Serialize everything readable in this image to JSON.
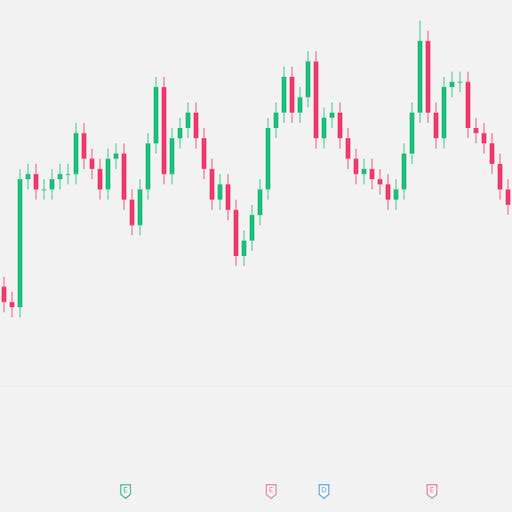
{
  "chart_data": {
    "type": "candlestick",
    "up_color": "#1fbf7a",
    "down_color": "#f23c6e",
    "ylim": [
      0,
      100
    ],
    "open": [
      44,
      41,
      40,
      65,
      66,
      63,
      63,
      65,
      66,
      66,
      74,
      69,
      67,
      63,
      69,
      70,
      61,
      56,
      63,
      72,
      83,
      66,
      73,
      75,
      78,
      73,
      67,
      61,
      64,
      59,
      50,
      53,
      58,
      63,
      75,
      78,
      85,
      78,
      81,
      88,
      73,
      77,
      78,
      73,
      69,
      66,
      67,
      65,
      64,
      61,
      63,
      70,
      78,
      92,
      78,
      73,
      83,
      84,
      84,
      75,
      74,
      72,
      68,
      63
    ],
    "high": [
      46,
      43,
      67,
      68,
      68,
      65,
      67,
      68,
      68,
      76,
      76,
      71,
      69,
      71,
      72,
      72,
      63,
      65,
      74,
      85,
      85,
      75,
      77,
      80,
      80,
      75,
      69,
      66,
      66,
      61,
      55,
      60,
      65,
      77,
      80,
      87,
      87,
      83,
      90,
      90,
      79,
      80,
      80,
      75,
      71,
      69,
      69,
      67,
      66,
      65,
      72,
      80,
      96,
      94,
      80,
      85,
      86,
      86,
      86,
      77,
      76,
      74,
      70,
      65
    ],
    "low": [
      39,
      38,
      38,
      63,
      61,
      61,
      61,
      63,
      64,
      64,
      67,
      65,
      61,
      61,
      67,
      59,
      54,
      54,
      61,
      70,
      64,
      64,
      71,
      73,
      71,
      65,
      59,
      59,
      57,
      48,
      48,
      51,
      56,
      61,
      73,
      76,
      76,
      76,
      79,
      71,
      71,
      75,
      71,
      67,
      64,
      64,
      63,
      62,
      59,
      59,
      61,
      68,
      76,
      76,
      71,
      71,
      81,
      82,
      73,
      72,
      70,
      66,
      61,
      58
    ],
    "close": [
      41,
      40,
      65,
      66,
      63,
      63,
      65,
      66,
      66,
      74,
      69,
      67,
      63,
      69,
      70,
      61,
      56,
      63,
      72,
      83,
      66,
      73,
      75,
      78,
      73,
      67,
      61,
      64,
      59,
      50,
      53,
      58,
      63,
      75,
      78,
      85,
      78,
      81,
      88,
      73,
      77,
      78,
      73,
      69,
      66,
      67,
      65,
      64,
      61,
      63,
      70,
      78,
      92,
      78,
      73,
      83,
      84,
      84,
      75,
      74,
      72,
      68,
      63,
      60
    ],
    "events": [
      "E",
      "E",
      "D",
      "E"
    ]
  }
}
